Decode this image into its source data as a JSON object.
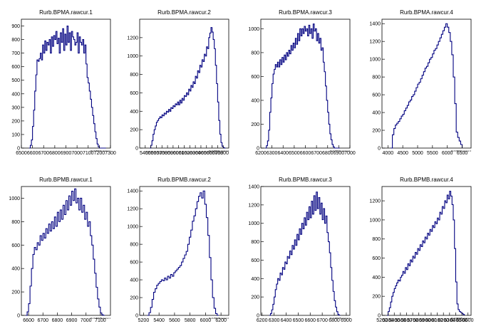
{
  "chart_data": [
    {
      "type": "bar",
      "title": "Rurb.BPMA.rawcur.1",
      "xlabel": "Rurb.BPMA.rawcur.1",
      "xlim": [
        6500,
        7300
      ],
      "xticks": [
        6500,
        6600,
        6700,
        6800,
        6900,
        7000,
        7100,
        7200,
        7300
      ],
      "ylim": [
        0,
        950
      ],
      "yticks": [
        0,
        100,
        200,
        300,
        400,
        500,
        600,
        700,
        800,
        900
      ],
      "bins": [
        6570,
        6580,
        6590,
        6600,
        6610,
        6620,
        6630,
        6640,
        6650,
        6660,
        6670,
        6680,
        6690,
        6700,
        6710,
        6720,
        6730,
        6740,
        6750,
        6760,
        6770,
        6780,
        6790,
        6800,
        6810,
        6820,
        6830,
        6840,
        6850,
        6860,
        6870,
        6880,
        6890,
        6900,
        6910,
        6920,
        6930,
        6940,
        6950,
        6960,
        6970,
        6980,
        6990,
        7000,
        7010,
        7020,
        7030,
        7040,
        7050,
        7060,
        7070,
        7080,
        7090,
        7100,
        7110,
        7120,
        7130,
        7140,
        7150,
        7160,
        7170,
        7180,
        7190,
        7200,
        7210,
        7220,
        7230,
        7240,
        7250
      ],
      "values": [
        0,
        20,
        60,
        160,
        280,
        420,
        540,
        650,
        640,
        660,
        700,
        650,
        760,
        700,
        790,
        720,
        780,
        760,
        800,
        700,
        820,
        750,
        830,
        800,
        860,
        770,
        810,
        700,
        850,
        780,
        880,
        720,
        840,
        760,
        900,
        780,
        850,
        720,
        860,
        820,
        800,
        760,
        780,
        850,
        700,
        820,
        780,
        760,
        800,
        700,
        760,
        620,
        520,
        480,
        420,
        360,
        300,
        240,
        180,
        120,
        70,
        30,
        10,
        0,
        0,
        0,
        0,
        0,
        0
      ]
    },
    {
      "type": "bar",
      "title": "Rurb.BPMA.rawcur.2",
      "xlabel": "Rurb.BPMA.rawcur.2",
      "xlim": [
        5300,
        6900
      ],
      "xticks": [
        5400,
        5500,
        5600,
        5700,
        5800,
        5900,
        6000,
        6100,
        6200,
        6300,
        6400,
        6500,
        6600,
        6700,
        6800
      ],
      "ylim": [
        0,
        1400
      ],
      "yticks": [
        0,
        200,
        400,
        600,
        800,
        1000,
        1200
      ],
      "bins": [
        5480,
        5500,
        5520,
        5540,
        5560,
        5580,
        5600,
        5620,
        5640,
        5660,
        5680,
        5700,
        5720,
        5740,
        5760,
        5780,
        5800,
        5820,
        5840,
        5860,
        5880,
        5900,
        5920,
        5940,
        5960,
        5980,
        6000,
        6020,
        6040,
        6060,
        6080,
        6100,
        6120,
        6140,
        6160,
        6180,
        6200,
        6220,
        6240,
        6260,
        6280,
        6300,
        6320,
        6340,
        6360,
        6380,
        6400,
        6420,
        6440,
        6460,
        6480,
        6500,
        6520,
        6540,
        6560,
        6580,
        6600,
        6620,
        6640,
        6660,
        6680,
        6700,
        6720,
        6740,
        6760,
        6780,
        6800,
        6820
      ],
      "values": [
        0,
        30,
        80,
        150,
        200,
        240,
        280,
        300,
        320,
        340,
        330,
        360,
        350,
        380,
        370,
        400,
        390,
        420,
        400,
        440,
        430,
        460,
        450,
        480,
        470,
        500,
        470,
        520,
        490,
        540,
        520,
        570,
        560,
        600,
        580,
        640,
        620,
        680,
        660,
        720,
        700,
        780,
        760,
        840,
        820,
        900,
        880,
        960,
        940,
        1020,
        1000,
        1100,
        1080,
        1200,
        1250,
        1310,
        1260,
        1180,
        1080,
        900,
        700,
        500,
        300,
        150,
        60,
        20,
        5,
        0
      ]
    },
    {
      "type": "bar",
      "title": "Rurb.BPMA.rawcur.3",
      "xlabel": "Rurb.BPMA.rawcur.3",
      "xlim": [
        6200,
        7000
      ],
      "xticks": [
        6200,
        6300,
        6400,
        6500,
        6600,
        6700,
        6800,
        6900,
        7000
      ],
      "ylim": [
        0,
        1080
      ],
      "yticks": [
        0,
        200,
        400,
        600,
        800,
        1000
      ],
      "bins": [
        6240,
        6250,
        6260,
        6270,
        6280,
        6290,
        6300,
        6310,
        6320,
        6330,
        6340,
        6350,
        6360,
        6370,
        6380,
        6390,
        6400,
        6410,
        6420,
        6430,
        6440,
        6450,
        6460,
        6470,
        6480,
        6490,
        6500,
        6510,
        6520,
        6530,
        6540,
        6550,
        6560,
        6570,
        6580,
        6590,
        6600,
        6610,
        6620,
        6630,
        6640,
        6650,
        6660,
        6670,
        6680,
        6690,
        6700,
        6710,
        6720,
        6730,
        6740,
        6750,
        6760,
        6770,
        6780,
        6790,
        6800,
        6810,
        6820,
        6830,
        6840,
        6850,
        6860,
        6870,
        6880,
        6890,
        6900
      ],
      "values": [
        0,
        20,
        60,
        150,
        300,
        420,
        540,
        620,
        660,
        700,
        680,
        720,
        680,
        740,
        700,
        760,
        720,
        780,
        740,
        800,
        770,
        820,
        790,
        860,
        820,
        880,
        840,
        920,
        870,
        960,
        900,
        1000,
        940,
        1000,
        960,
        1020,
        980,
        1000,
        940,
        1030,
        960,
        1000,
        920,
        1040,
        980,
        1000,
        900,
        960,
        880,
        920,
        820,
        840,
        720,
        640,
        520,
        400,
        300,
        200,
        120,
        70,
        30,
        10,
        0,
        0,
        0,
        0,
        0
      ]
    },
    {
      "type": "bar",
      "title": "Rurb.BPMA.rawcur.4",
      "xlabel": "Rurb.BPMA.rawcur.4",
      "xlim": [
        3800,
        6800
      ],
      "xticks": [
        4000,
        4500,
        5000,
        5500,
        6000,
        6500
      ],
      "ylim": [
        0,
        1450
      ],
      "yticks": [
        0,
        200,
        400,
        600,
        800,
        1000,
        1200,
        1400
      ],
      "bins": [
        4100,
        4150,
        4200,
        4250,
        4300,
        4350,
        4400,
        4450,
        4500,
        4550,
        4600,
        4650,
        4700,
        4750,
        4800,
        4850,
        4900,
        4950,
        5000,
        5050,
        5100,
        5150,
        5200,
        5250,
        5300,
        5350,
        5400,
        5450,
        5500,
        5550,
        5600,
        5650,
        5700,
        5750,
        5800,
        5850,
        5900,
        5950,
        6000,
        6050,
        6100,
        6150,
        6200,
        6250,
        6300,
        6350,
        6400,
        6450
      ],
      "values": [
        0,
        150,
        220,
        260,
        280,
        300,
        330,
        360,
        380,
        420,
        450,
        480,
        520,
        540,
        580,
        600,
        640,
        680,
        720,
        740,
        780,
        820,
        860,
        900,
        920,
        960,
        1000,
        1020,
        1060,
        1100,
        1120,
        1160,
        1200,
        1240,
        1280,
        1320,
        1360,
        1400,
        1360,
        1300,
        1200,
        1050,
        800,
        500,
        180,
        120,
        80,
        40
      ]
    },
    {
      "type": "bar",
      "title": "Rurb.BPMB.rawcur.1",
      "xlabel": "Rurb.BPMB.rawcur.1",
      "xlim": [
        6550,
        7170
      ],
      "xticks": [
        6600,
        6700,
        6800,
        6900,
        7000,
        7100
      ],
      "ylim": [
        0,
        1100
      ],
      "yticks": [
        0,
        200,
        400,
        600,
        800,
        1000
      ],
      "bins": [
        6580,
        6590,
        6600,
        6610,
        6620,
        6630,
        6640,
        6650,
        6660,
        6670,
        6680,
        6690,
        6700,
        6710,
        6720,
        6730,
        6740,
        6750,
        6760,
        6770,
        6780,
        6790,
        6800,
        6810,
        6820,
        6830,
        6840,
        6850,
        6860,
        6870,
        6880,
        6890,
        6900,
        6910,
        6920,
        6930,
        6940,
        6950,
        6960,
        6970,
        6980,
        6990,
        7000,
        7010,
        7020,
        7030,
        7040,
        7050,
        7060,
        7070,
        7080,
        7090,
        7100,
        7110,
        7120
      ],
      "values": [
        0,
        30,
        100,
        250,
        400,
        520,
        580,
        560,
        620,
        600,
        680,
        640,
        700,
        660,
        740,
        700,
        780,
        720,
        800,
        740,
        840,
        760,
        880,
        800,
        900,
        820,
        940,
        860,
        980,
        900,
        1020,
        940,
        1060,
        980,
        1080,
        960,
        1000,
        900,
        1000,
        880,
        940,
        820,
        880,
        760,
        800,
        680,
        600,
        480,
        360,
        240,
        140,
        70,
        20,
        5,
        0
      ]
    },
    {
      "type": "bar",
      "title": "Rurb.BPMB.rawcur.2",
      "xlabel": "Rurb.BPMB.rawcur.2",
      "xlim": [
        5150,
        6300
      ],
      "xticks": [
        5200,
        5400,
        5600,
        5800,
        6000,
        6200
      ],
      "ylim": [
        0,
        1450
      ],
      "yticks": [
        0,
        200,
        400,
        600,
        800,
        1000,
        1200,
        1400
      ],
      "bins": [
        5250,
        5270,
        5290,
        5310,
        5330,
        5350,
        5370,
        5390,
        5410,
        5430,
        5450,
        5470,
        5490,
        5510,
        5530,
        5550,
        5570,
        5590,
        5610,
        5630,
        5650,
        5670,
        5690,
        5710,
        5730,
        5750,
        5770,
        5790,
        5810,
        5830,
        5850,
        5870,
        5890,
        5910,
        5930,
        5950,
        5970,
        5990,
        6010,
        6030,
        6050,
        6070,
        6090,
        6110,
        6130,
        6150
      ],
      "values": [
        0,
        30,
        90,
        180,
        260,
        300,
        340,
        360,
        380,
        400,
        390,
        420,
        400,
        440,
        420,
        460,
        440,
        480,
        500,
        520,
        540,
        560,
        600,
        640,
        680,
        720,
        800,
        880,
        960,
        1060,
        1120,
        1200,
        1280,
        1340,
        1380,
        1320,
        1400,
        1250,
        1100,
        900,
        650,
        400,
        200,
        80,
        20,
        0
      ]
    },
    {
      "type": "bar",
      "title": "Rurb.BPMB.rawcur.3",
      "xlabel": "Rurb.BPMB.rawcur.3",
      "xlim": [
        6190,
        6930
      ],
      "xticks": [
        6200,
        6300,
        6400,
        6500,
        6600,
        6700,
        6800,
        6900
      ],
      "ylim": [
        0,
        1400
      ],
      "yticks": [
        0,
        200,
        400,
        600,
        800,
        1000,
        1200,
        1400
      ],
      "bins": [
        6260,
        6270,
        6280,
        6290,
        6300,
        6310,
        6320,
        6330,
        6340,
        6350,
        6360,
        6370,
        6380,
        6390,
        6400,
        6410,
        6420,
        6430,
        6440,
        6450,
        6460,
        6470,
        6480,
        6490,
        6500,
        6510,
        6520,
        6530,
        6540,
        6550,
        6560,
        6570,
        6580,
        6590,
        6600,
        6610,
        6620,
        6630,
        6640,
        6650,
        6660,
        6670,
        6680,
        6690,
        6700,
        6710,
        6720,
        6730,
        6740,
        6750,
        6760,
        6770,
        6780,
        6790,
        6800,
        6810,
        6820,
        6830,
        6840
      ],
      "values": [
        0,
        20,
        60,
        120,
        200,
        280,
        340,
        400,
        380,
        460,
        440,
        520,
        500,
        580,
        560,
        640,
        620,
        700,
        660,
        760,
        720,
        820,
        760,
        880,
        820,
        940,
        880,
        1000,
        940,
        1060,
        980,
        1120,
        1040,
        1180,
        1060,
        1240,
        1100,
        1300,
        1140,
        1340,
        1160,
        1280,
        1100,
        1220,
        1040,
        1160,
        1000,
        1080,
        900,
        800,
        680,
        520,
        380,
        260,
        160,
        90,
        40,
        10,
        0
      ]
    },
    {
      "type": "bar",
      "title": "Rurb.BPMB.rawcur.4",
      "xlabel": "Rurb.BPMB.rawcur.4",
      "xlim": [
        5200,
        6650
      ],
      "xticks": [
        5200,
        5300,
        5400,
        5500,
        5600,
        5700,
        5800,
        5900,
        6000,
        6100,
        6200,
        6300,
        6400,
        6500,
        6600
      ],
      "ylim": [
        0,
        1350
      ],
      "yticks": [
        0,
        200,
        400,
        600,
        800,
        1000,
        1200
      ],
      "bins": [
        5280,
        5300,
        5320,
        5340,
        5360,
        5380,
        5400,
        5420,
        5440,
        5460,
        5480,
        5500,
        5520,
        5540,
        5560,
        5580,
        5600,
        5620,
        5640,
        5660,
        5680,
        5700,
        5720,
        5740,
        5760,
        5780,
        5800,
        5820,
        5840,
        5860,
        5880,
        5900,
        5920,
        5940,
        5960,
        5980,
        6000,
        6020,
        6040,
        6060,
        6080,
        6100,
        6120,
        6140,
        6160,
        6180,
        6200,
        6220,
        6240,
        6260,
        6280,
        6300,
        6320,
        6340,
        6360,
        6380,
        6400,
        6420,
        6440,
        6460,
        6480,
        6500,
        6520
      ],
      "values": [
        0,
        40,
        80,
        140,
        200,
        240,
        280,
        310,
        340,
        370,
        360,
        400,
        420,
        460,
        440,
        500,
        480,
        540,
        520,
        580,
        560,
        620,
        600,
        660,
        640,
        700,
        680,
        740,
        720,
        780,
        760,
        820,
        800,
        860,
        840,
        900,
        880,
        940,
        920,
        980,
        960,
        1020,
        1000,
        1080,
        1060,
        1140,
        1120,
        1200,
        1180,
        1260,
        1220,
        1300,
        1250,
        1160,
        1000,
        700,
        350,
        120,
        60,
        40,
        30,
        20,
        10
      ]
    }
  ]
}
